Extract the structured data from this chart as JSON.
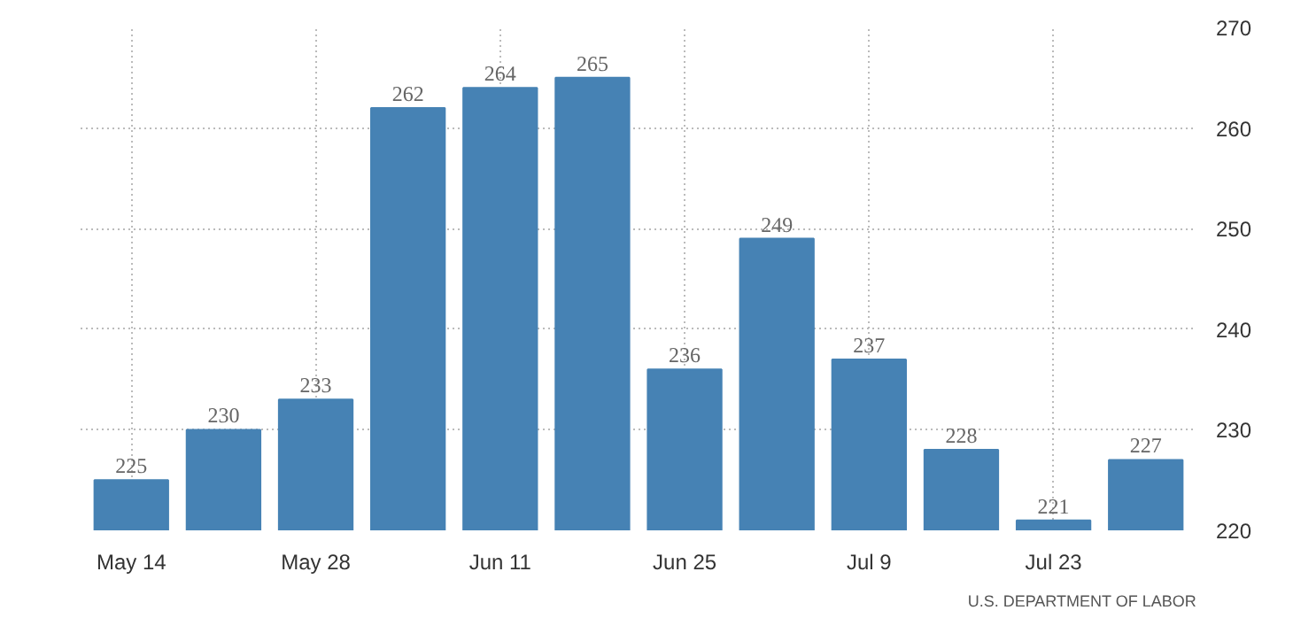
{
  "chart_data": {
    "type": "bar",
    "categories": [
      "May 14",
      null,
      "May 28",
      null,
      "Jun 11",
      null,
      "Jun 25",
      null,
      "Jul 9",
      null,
      "Jul 23",
      null
    ],
    "values": [
      225,
      230,
      233,
      262,
      264,
      265,
      236,
      249,
      237,
      228,
      221,
      227
    ],
    "color": "#4682b4",
    "ylim": [
      220,
      270
    ],
    "yticks": [
      220,
      230,
      240,
      250,
      260,
      270
    ],
    "grid": true,
    "data_labels": true,
    "annotations": [
      "U.S. DEPARTMENT OF LABOR"
    ]
  }
}
